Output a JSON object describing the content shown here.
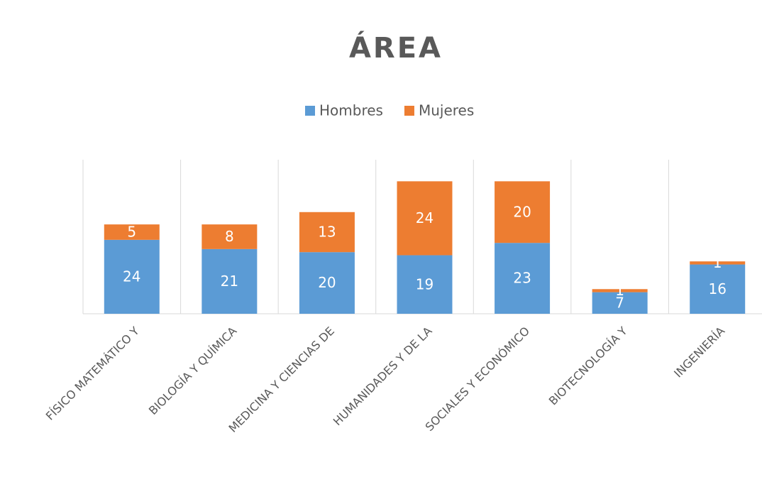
{
  "chart_data": {
    "type": "stacked_bar",
    "title": "ÁREA",
    "categories": [
      "FÍSICO MATEMÁTICO Y",
      "BIOLOGÍA Y QUÍMICA",
      "MEDICINA Y CIENCIAS DE",
      "HUMANIDADES Y DE LA",
      "SOCIALES Y ECONÓMICO",
      "BIOTECNOLOGÍA Y",
      "INGENIERÍA"
    ],
    "series": [
      {
        "name": "Hombres",
        "color": "#5b9bd5",
        "values": [
          24,
          21,
          20,
          19,
          23,
          7,
          16
        ]
      },
      {
        "name": "Mujeres",
        "color": "#ed7d31",
        "values": [
          5,
          8,
          13,
          24,
          20,
          1,
          1
        ]
      }
    ],
    "ylim": [
      0,
      50
    ],
    "legend": "top",
    "grid": true
  }
}
